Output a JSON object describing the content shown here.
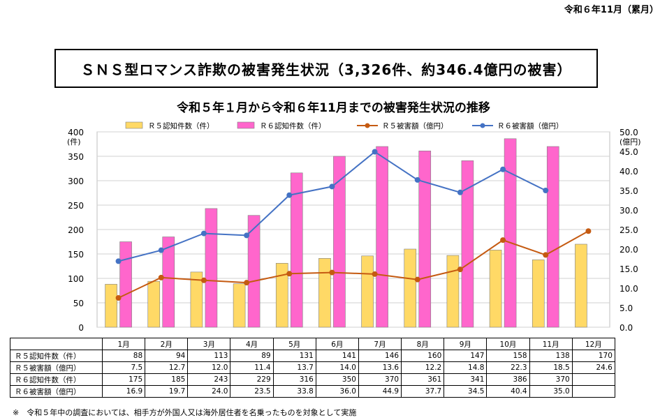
{
  "header": {
    "date": "令和６年11月（累月）"
  },
  "main_title": "ＳＮＳ型ロマンス詐欺の被害発生状況（3,326件、約346.4億円の被害）",
  "chart_data": {
    "type": "bar",
    "title": "令和５年１月から令和６年11月までの被害発生状況の推移",
    "categories": [
      "1月",
      "2月",
      "3月",
      "4月",
      "5月",
      "6月",
      "7月",
      "8月",
      "9月",
      "10月",
      "11月",
      "12月"
    ],
    "left_axis": {
      "unit": "(件)",
      "range": [
        0,
        400
      ],
      "ticks": [
        "0",
        "50",
        "100",
        "150",
        "200",
        "250",
        "300",
        "350",
        "400"
      ]
    },
    "right_axis": {
      "unit": "(億円)",
      "range": [
        0,
        50
      ],
      "ticks": [
        "0.0",
        "5.0",
        "10.0",
        "15.0",
        "20.0",
        "25.0",
        "30.0",
        "35.0",
        "40.0",
        "45.0",
        "50.0"
      ]
    },
    "series": [
      {
        "name": "Ｒ５認知件数（件）",
        "kind": "bar",
        "axis": "left",
        "color": "#FFD966",
        "values": [
          88,
          94,
          113,
          89,
          131,
          141,
          146,
          160,
          147,
          158,
          138,
          170
        ]
      },
      {
        "name": "Ｒ６認知件数（件）",
        "kind": "bar",
        "axis": "left",
        "color": "#FF66CC",
        "values": [
          175,
          185,
          243,
          229,
          316,
          350,
          370,
          361,
          341,
          386,
          370,
          null
        ]
      },
      {
        "name": "Ｒ５被害額（億円）",
        "kind": "line",
        "axis": "right",
        "color": "#C55A11",
        "values": [
          7.5,
          12.7,
          12.0,
          11.4,
          13.7,
          14.0,
          13.6,
          12.2,
          14.8,
          22.3,
          18.5,
          24.6
        ]
      },
      {
        "name": "Ｒ６被害額（億円）",
        "kind": "line",
        "axis": "right",
        "color": "#4472C4",
        "values": [
          16.9,
          19.7,
          24.0,
          23.5,
          33.8,
          36.0,
          44.9,
          37.7,
          34.5,
          40.4,
          35.0,
          null
        ]
      }
    ],
    "grid": "horizontal",
    "legend": "top"
  },
  "table": {
    "months": [
      "1月",
      "2月",
      "3月",
      "4月",
      "5月",
      "6月",
      "7月",
      "8月",
      "9月",
      "10月",
      "11月",
      "12月"
    ],
    "rows": [
      {
        "label": "Ｒ５認知件数（件）",
        "values": [
          "88",
          "94",
          "113",
          "89",
          "131",
          "141",
          "146",
          "160",
          "147",
          "158",
          "138",
          "170"
        ]
      },
      {
        "label": "Ｒ５被害額（億円）",
        "values": [
          "7.5",
          "12.7",
          "12.0",
          "11.4",
          "13.7",
          "14.0",
          "13.6",
          "12.2",
          "14.8",
          "22.3",
          "18.5",
          "24.6"
        ]
      },
      {
        "label": "Ｒ６認知件数（件）",
        "values": [
          "175",
          "185",
          "243",
          "229",
          "316",
          "350",
          "370",
          "361",
          "341",
          "386",
          "370",
          ""
        ]
      },
      {
        "label": "Ｒ６被害額（億円）",
        "values": [
          "16.9",
          "19.7",
          "24.0",
          "23.5",
          "33.8",
          "36.0",
          "44.9",
          "37.7",
          "34.5",
          "40.4",
          "35.0",
          ""
        ]
      }
    ]
  },
  "note": "※　令和５年中の調査においては、相手方が外国人又は海外居住者を名乗ったものを対象として実施"
}
